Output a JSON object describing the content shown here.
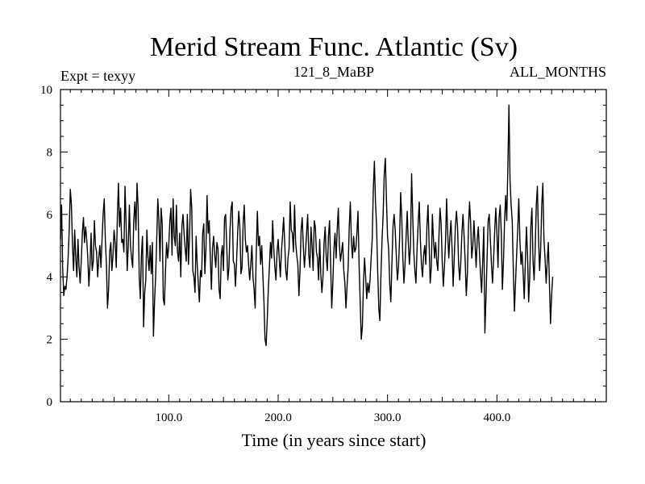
{
  "chart_data": {
    "type": "line",
    "title": "Merid Stream Func. Atlantic (Sv)",
    "header_left": "Expt = texyy",
    "header_center": "121_8_MaBP",
    "header_right": "ALL_MONTHS",
    "xlabel": "Time (in years since start)",
    "ylabel": "",
    "xlim": [
      1,
      500
    ],
    "ylim": [
      0,
      10
    ],
    "x_ticks": [
      100,
      200,
      300,
      400
    ],
    "x_tick_labels": [
      "100.0",
      "200.0",
      "300.0",
      "400.0"
    ],
    "y_ticks": [
      0,
      2,
      4,
      6,
      8,
      10
    ],
    "y_tick_labels": [
      "0",
      "2",
      "4",
      "6",
      "8",
      "10"
    ],
    "grid": false,
    "series": [
      {
        "color": "#000000",
        "x_start": 1,
        "x_step": 1,
        "values": [
          5.2,
          6.3,
          4.3,
          3.4,
          3.7,
          3.6,
          4.0,
          4.6,
          5.5,
          6.8,
          6.3,
          5.0,
          4.2,
          5.5,
          4.6,
          4.0,
          5.2,
          4.3,
          3.8,
          4.5,
          5.4,
          5.9,
          5.1,
          5.6,
          5.2,
          4.6,
          3.7,
          4.4,
          5.4,
          4.2,
          4.5,
          5.8,
          5.0,
          4.8,
          4.0,
          4.6,
          5.0,
          4.3,
          5.2,
          6.0,
          6.5,
          5.2,
          4.4,
          3.0,
          3.6,
          4.8,
          5.1,
          4.2,
          4.7,
          5.5,
          5.1,
          4.3,
          5.9,
          7.0,
          5.6,
          6.2,
          5.1,
          5.2,
          4.8,
          6.9,
          5.7,
          4.2,
          5.0,
          6.3,
          5.0,
          4.6,
          4.3,
          5.8,
          6.4,
          5.5,
          7.0,
          6.2,
          4.0,
          3.3,
          4.7,
          5.3,
          2.4,
          3.5,
          3.9,
          5.5,
          4.6,
          4.2,
          5.0,
          4.1,
          5.1,
          2.1,
          3.2,
          4.0,
          5.2,
          6.5,
          5.8,
          4.5,
          6.2,
          5.7,
          3.3,
          3.1,
          4.2,
          5.1,
          4.6,
          5.0,
          5.8,
          6.2,
          4.7,
          6.5,
          5.3,
          5.0,
          6.3,
          4.8,
          4.5,
          5.4,
          4.0,
          5.6,
          6.0,
          5.4,
          4.9,
          4.5,
          6.0,
          4.4,
          5.3,
          6.8,
          6.2,
          4.2,
          4.0,
          3.5,
          5.3,
          4.4,
          3.8,
          3.2,
          4.2,
          4.0,
          5.4,
          5.7,
          4.1,
          4.9,
          6.6,
          5.4,
          5.8,
          4.6,
          3.6,
          4.9,
          5.3,
          4.7,
          4.3,
          5.1,
          4.9,
          3.6,
          3.3,
          4.7,
          5.0,
          4.2,
          5.9,
          6.0,
          5.0,
          3.9,
          4.3,
          5.5,
          6.2,
          6.4,
          4.5,
          4.4,
          3.7,
          4.5,
          5.4,
          6.1,
          5.6,
          4.1,
          4.3,
          5.7,
          6.3,
          5.2,
          4.8,
          5.0,
          4.4,
          3.9,
          4.4,
          5.0,
          4.0,
          3.6,
          3.0,
          4.8,
          6.1,
          5.0,
          5.3,
          4.4,
          5.0,
          4.1,
          3.2,
          2.0,
          1.8,
          2.6,
          3.6,
          4.3,
          5.1,
          4.6,
          5.8,
          4.9,
          4.3,
          3.9,
          4.8,
          5.2,
          4.6,
          4.0,
          4.8,
          5.3,
          5.9,
          5.1,
          4.2,
          3.9,
          4.6,
          4.9,
          6.4,
          5.5,
          5.4,
          4.8,
          6.3,
          5.1,
          4.7,
          4.4,
          3.4,
          4.2,
          5.5,
          5.9,
          5.0,
          4.3,
          4.8,
          5.4,
          6.0,
          4.7,
          4.3,
          5.6,
          5.0,
          4.2,
          5.8,
          5.6,
          4.8,
          4.6,
          3.9,
          5.2,
          4.1,
          3.5,
          4.0,
          5.1,
          5.6,
          4.6,
          4.2,
          5.3,
          5.8,
          4.4,
          3.0,
          3.8,
          4.9,
          5.4,
          4.6,
          5.5,
          6.2,
          5.0,
          4.5,
          4.8,
          5.1,
          4.2,
          3.8,
          3.0,
          3.7,
          4.3,
          5.6,
          6.4,
          5.1,
          4.6,
          5.3,
          4.8,
          4.9,
          5.4,
          6.1,
          4.4,
          3.2,
          2.0,
          2.4,
          3.8,
          4.6,
          4.0,
          3.3,
          3.8,
          3.5,
          3.9,
          4.6,
          5.2,
          6.8,
          7.7,
          6.4,
          5.6,
          4.2,
          3.0,
          2.6,
          4.1,
          5.2,
          6.0,
          7.3,
          7.8,
          6.5,
          5.3,
          4.9,
          3.8,
          3.2,
          4.4,
          5.6,
          6.0,
          5.5,
          4.7,
          3.9,
          4.3,
          5.2,
          6.7,
          5.9,
          4.6,
          3.8,
          4.4,
          5.3,
          6.1,
          5.1,
          4.4,
          5.0,
          7.3,
          6.0,
          4.8,
          4.2,
          3.8,
          4.9,
          5.7,
          6.4,
          5.2,
          4.4,
          4.0,
          4.7,
          5.0,
          4.4,
          5.6,
          6.3,
          5.1,
          3.8,
          4.3,
          6.0,
          5.2,
          4.6,
          5.1,
          4.5,
          4.2,
          5.3,
          6.2,
          5.7,
          4.5,
          3.7,
          4.3,
          5.1,
          6.5,
          5.4,
          4.6,
          5.3,
          5.8,
          4.9,
          3.7,
          4.6,
          5.6,
          6.1,
          5.6,
          4.4,
          3.9,
          4.5,
          5.4,
          6.0,
          5.3,
          4.5,
          3.4,
          4.1,
          5.6,
          6.4,
          5.7,
          4.6,
          5.0,
          5.8,
          5.1,
          4.3,
          5.2,
          5.6,
          4.8,
          4.1,
          3.5,
          4.5,
          5.6,
          2.2,
          3.3,
          4.6,
          5.8,
          6.0,
          5.2,
          4.4,
          3.8,
          4.6,
          5.5,
          6.2,
          5.4,
          4.3,
          5.9,
          6.3,
          5.4,
          3.6,
          4.5,
          5.8,
          6.6,
          5.8,
          7.5,
          9.5,
          7.1,
          6.3,
          5.8,
          4.2,
          2.9,
          3.8,
          4.7,
          5.5,
          6.5,
          5.2,
          4.4,
          4.8,
          4.1,
          3.3,
          4.5,
          5.6,
          4.7,
          3.2,
          4.0,
          5.6,
          6.2,
          4.5,
          3.9,
          4.9,
          6.3,
          6.9,
          5.3,
          4.2,
          4.9,
          6.3,
          7.0,
          5.2,
          4.6,
          3.8,
          4.5,
          5.1,
          3.8,
          2.5,
          3.4,
          4.0
        ]
      }
    ]
  }
}
